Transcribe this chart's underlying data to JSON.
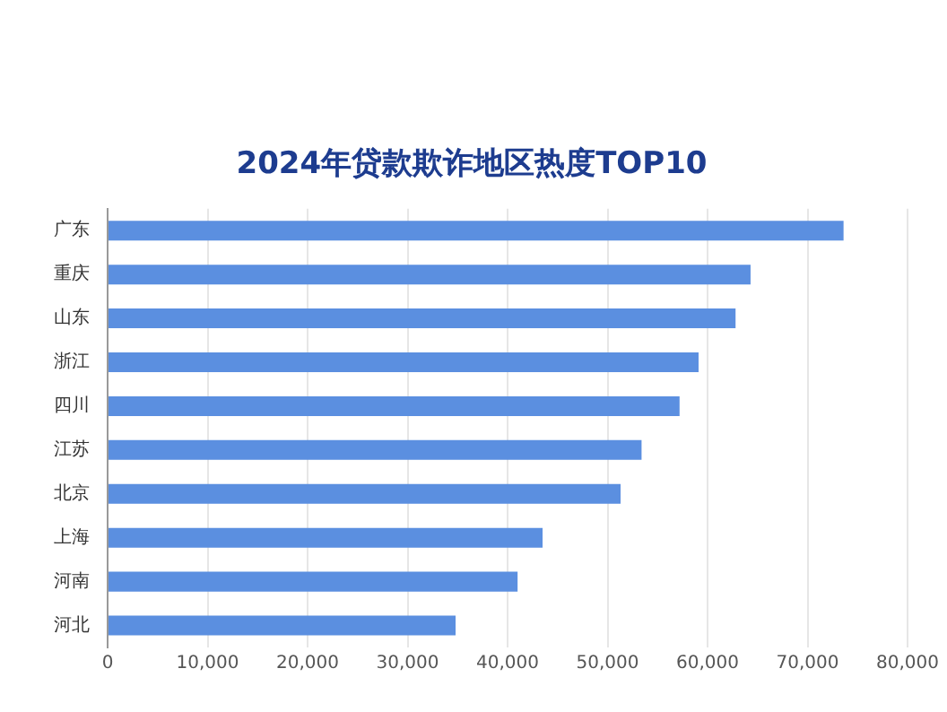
{
  "chart_data": {
    "type": "bar",
    "orientation": "horizontal",
    "title": "2024年贷款欺诈地区热度TOP10",
    "categories": [
      "广东",
      "重庆",
      "山东",
      "浙江",
      "四川",
      "江苏",
      "北京",
      "上海",
      "河南",
      "河北"
    ],
    "values": [
      73600,
      64300,
      62800,
      59100,
      57200,
      53400,
      51300,
      43500,
      41000,
      34800
    ],
    "color": "#5b8fe0",
    "xlim": [
      0,
      80000
    ],
    "xticks": [
      0,
      {
        "value": 10000,
        "label": "10,000"
      },
      {
        "value": 20000,
        "label": "20,000"
      },
      {
        "value": 30000,
        "label": "30,000"
      },
      {
        "value": 40000,
        "label": "40,000"
      },
      {
        "value": 50000,
        "label": "50,000"
      },
      {
        "value": 60000,
        "label": "60,000"
      },
      {
        "value": 70000,
        "label": "70,000"
      },
      {
        "value": 80000,
        "label": "80,000"
      }
    ],
    "grid": "x",
    "legend": false
  }
}
